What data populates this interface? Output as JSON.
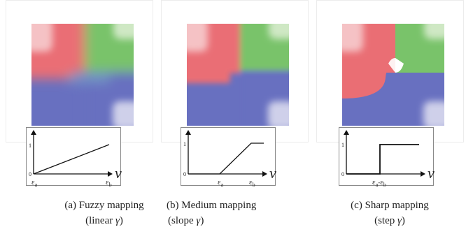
{
  "panels": [
    {
      "id": "a",
      "caption_line1": "(a) Fuzzy mapping",
      "caption_line2_prefix": "(linear ",
      "caption_symbol": "γ",
      "caption_line2_suffix": ")",
      "y_tick": "1",
      "y_origin": "0",
      "x_tick_a": "ε",
      "x_tick_a_sub": "a",
      "x_tick_b": "ε",
      "x_tick_b_sub": "b",
      "x_axis_symbol": "ν"
    },
    {
      "id": "b",
      "caption_line1": "(b) Medium mapping",
      "caption_line2_prefix": "(slope ",
      "caption_symbol": "γ",
      "caption_line2_suffix": ")",
      "y_tick": "1",
      "y_origin": "0",
      "x_tick_a": "ε",
      "x_tick_a_sub": "a",
      "x_tick_b": "ε",
      "x_tick_b_sub": "b",
      "x_axis_symbol": "ν"
    },
    {
      "id": "c",
      "caption_line1": "(c) Sharp mapping",
      "caption_line2_prefix": "(step ",
      "caption_symbol": "γ",
      "caption_line2_suffix": ")",
      "y_tick": "1",
      "y_origin": "0",
      "x_tick_a": "ε",
      "x_tick_a_sub": "a",
      "x_tick_sep": "-",
      "x_tick_b": "ε",
      "x_tick_b_sub": "b",
      "x_axis_symbol": "ν"
    }
  ],
  "colors": {
    "red": "#ea6e74",
    "red_light": "#f5c2c5",
    "green": "#79c36a",
    "green_light": "#cfe8c4",
    "blue": "#6870c0",
    "blue_light": "#cfd0ea",
    "frame_border": "#ececec",
    "plot_border": "#8a8a8a"
  }
}
